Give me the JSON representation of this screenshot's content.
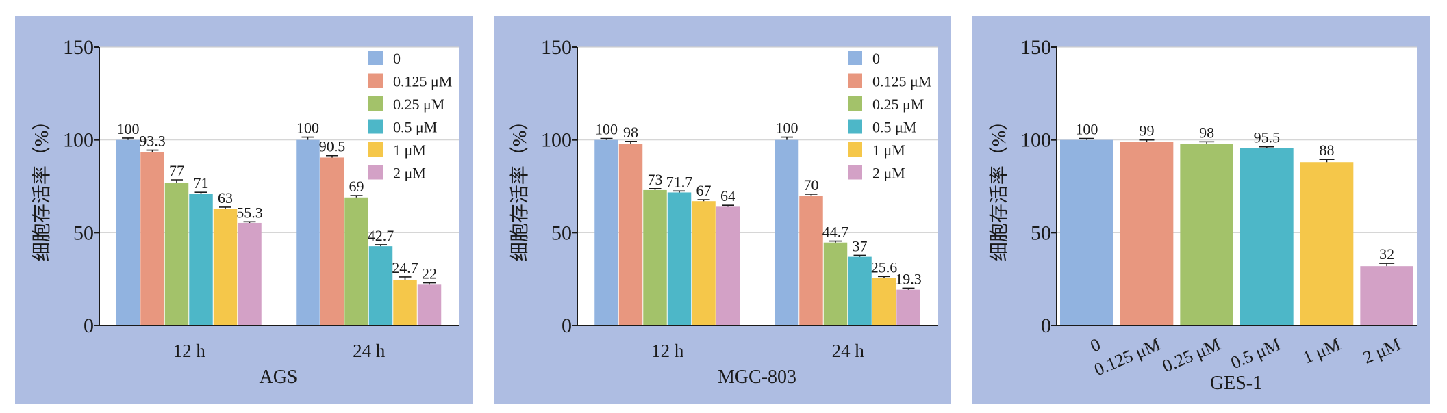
{
  "chart_data": [
    {
      "type": "bar",
      "title": "",
      "xlabel": "AGS",
      "ylabel": "细胞存活率（%）",
      "ylim": [
        0,
        150
      ],
      "yticks": [
        0,
        50,
        100,
        150
      ],
      "categories": [
        "12 h",
        "24 h"
      ],
      "legend_position": "top-right",
      "grid": true,
      "series": [
        {
          "name": "0",
          "color": "#91b3e0",
          "values": [
            100,
            100
          ],
          "errors": [
            1,
            1.5
          ]
        },
        {
          "name": "0.125 μM",
          "color": "#e8977f",
          "values": [
            93.3,
            90.5
          ],
          "errors": [
            1.2,
            1
          ]
        },
        {
          "name": "0.25 μM",
          "color": "#a3c26a",
          "values": [
            77,
            69
          ],
          "errors": [
            1.5,
            1
          ]
        },
        {
          "name": "0.5 μM",
          "color": "#4db7c8",
          "values": [
            71,
            42.7
          ],
          "errors": [
            0.8,
            0.8
          ]
        },
        {
          "name": "1 μM",
          "color": "#f5c74a",
          "values": [
            63,
            24.7
          ],
          "errors": [
            0.8,
            1.5
          ]
        },
        {
          "name": "2 μM",
          "color": "#d3a1c6",
          "values": [
            55.3,
            22
          ],
          "errors": [
            0.6,
            1
          ]
        }
      ],
      "data_labels": [
        [
          "100",
          "100"
        ],
        [
          "93.3",
          "90.5"
        ],
        [
          "77",
          "69"
        ],
        [
          "71",
          "42.7"
        ],
        [
          "63",
          "24.7"
        ],
        [
          "55.3",
          "22"
        ]
      ]
    },
    {
      "type": "bar",
      "title": "",
      "xlabel": "MGC-803",
      "ylabel": "细胞存活率（%）",
      "ylim": [
        0,
        150
      ],
      "yticks": [
        0,
        50,
        100,
        150
      ],
      "categories": [
        "12 h",
        "24 h"
      ],
      "legend_position": "top-right",
      "grid": true,
      "series": [
        {
          "name": "0",
          "color": "#91b3e0",
          "values": [
            100,
            100
          ],
          "errors": [
            0.8,
            1.5
          ]
        },
        {
          "name": "0.125 μM",
          "color": "#e8977f",
          "values": [
            98,
            70
          ],
          "errors": [
            1.2,
            0.8
          ]
        },
        {
          "name": "0.25 μM",
          "color": "#a3c26a",
          "values": [
            73,
            44.7
          ],
          "errors": [
            0.8,
            0.8
          ]
        },
        {
          "name": "0.5 μM",
          "color": "#4db7c8",
          "values": [
            71.7,
            37
          ],
          "errors": [
            0.8,
            0.8
          ]
        },
        {
          "name": "1 μM",
          "color": "#f5c74a",
          "values": [
            67,
            25.6
          ],
          "errors": [
            0.8,
            0.8
          ]
        },
        {
          "name": "2 μM",
          "color": "#d3a1c6",
          "values": [
            64,
            19.3
          ],
          "errors": [
            0.8,
            0.8
          ]
        }
      ],
      "data_labels": [
        [
          "100",
          "100"
        ],
        [
          "98",
          "70"
        ],
        [
          "73",
          "44.7"
        ],
        [
          "71.7",
          "37"
        ],
        [
          "67",
          "25.6"
        ],
        [
          "64",
          "19.3"
        ]
      ]
    },
    {
      "type": "bar",
      "title": "",
      "xlabel": "GES-1",
      "ylabel": "细胞存活率（%）",
      "ylim": [
        0,
        150
      ],
      "yticks": [
        0,
        50,
        100,
        150
      ],
      "categories": [
        "0",
        "0.125 μM",
        "0.25 μM",
        "0.5 μM",
        "1 μM",
        "2 μM"
      ],
      "grid": true,
      "colors": [
        "#91b3e0",
        "#e8977f",
        "#a3c26a",
        "#4db7c8",
        "#f5c74a",
        "#d3a1c6"
      ],
      "values": [
        100,
        99,
        98,
        95.5,
        88,
        32
      ],
      "errors": [
        0.8,
        1,
        1,
        0.8,
        1.5,
        1.5
      ],
      "data_labels": [
        "100",
        "99",
        "98",
        "95.5",
        "88",
        "32"
      ]
    }
  ],
  "style": {
    "panel_background": "#aebde2",
    "plot_background": "#ffffff",
    "axis_color": "#1a1a1a",
    "grid_color": "#d0d0d0"
  }
}
